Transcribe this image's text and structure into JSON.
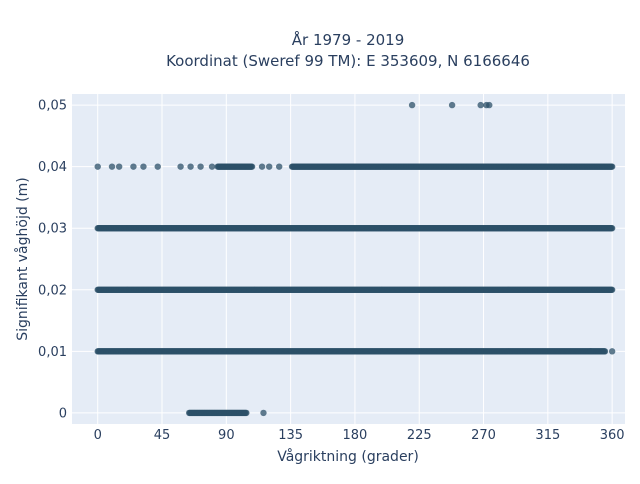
{
  "chart_data": {
    "type": "scatter",
    "title_line1": "År 1979 - 2019",
    "title_line2": "Koordinat (Sweref 99 TM): E 353609, N 6166646",
    "xlabel": "Vågriktning (grader)",
    "ylabel": "Signifikant våghöjd (m)",
    "xlim": [
      -18,
      369
    ],
    "ylim": [
      -0.0018,
      0.0518
    ],
    "x_ticks": [
      {
        "value": 0,
        "label": "0"
      },
      {
        "value": 45,
        "label": "45"
      },
      {
        "value": 90,
        "label": "90"
      },
      {
        "value": 135,
        "label": "135"
      },
      {
        "value": 180,
        "label": "180"
      },
      {
        "value": 225,
        "label": "225"
      },
      {
        "value": 270,
        "label": "270"
      },
      {
        "value": 315,
        "label": "315"
      },
      {
        "value": 360,
        "label": "360"
      }
    ],
    "y_ticks": [
      {
        "value": 0,
        "label": "0"
      },
      {
        "value": 0.01,
        "label": "0,01"
      },
      {
        "value": 0.02,
        "label": "0,02"
      },
      {
        "value": 0.03,
        "label": "0,03"
      },
      {
        "value": 0.04,
        "label": "0,04"
      },
      {
        "value": 0.05,
        "label": "0,05"
      }
    ],
    "grid": true,
    "marker_color": "#2c5068",
    "plot_background": "#e5ecf6",
    "series": [
      {
        "values": [
          {
            "y": 0,
            "x_ranges": [
              [
                64,
                104
              ]
            ],
            "x_points": [
              116
            ]
          },
          {
            "y": 0.01,
            "x_ranges": [
              [
                0,
                355
              ]
            ],
            "x_points": [
              345,
              360
            ]
          },
          {
            "y": 0.02,
            "x_ranges": [
              [
                0,
                360
              ]
            ],
            "x_points": []
          },
          {
            "y": 0.03,
            "x_ranges": [
              [
                0,
                360
              ]
            ],
            "x_points": []
          },
          {
            "y": 0.04,
            "x_ranges": [
              [
                84,
                108
              ],
              [
                136,
                360
              ]
            ],
            "x_points": [
              0,
              10,
              15,
              25,
              32,
              42,
              58,
              65,
              72,
              80,
              115,
              120,
              127
            ]
          },
          {
            "y": 0.05,
            "x_ranges": [],
            "x_points": [
              220,
              248,
              268,
              272,
              274
            ]
          }
        ]
      }
    ]
  }
}
